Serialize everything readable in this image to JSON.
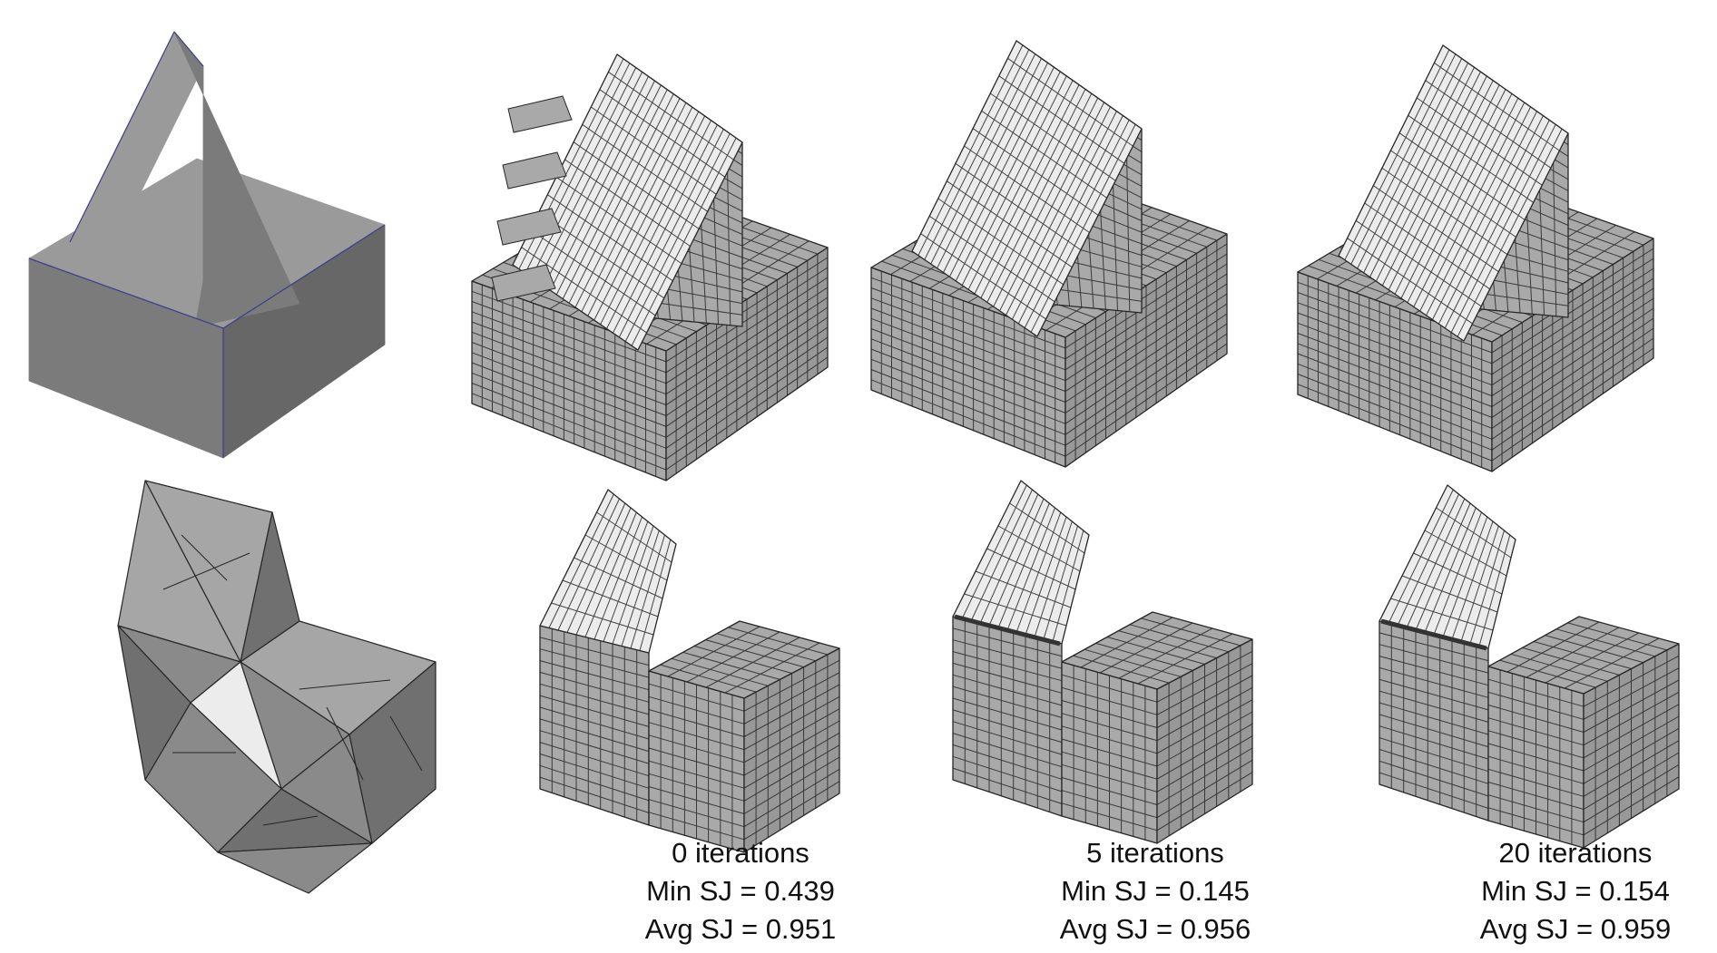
{
  "colors": {
    "background": "#ffffff",
    "cad_face_top": "#9a9a9a",
    "cad_face_front": "#7b7b7b",
    "cad_face_side": "#676767",
    "cad_edge": "#3b3f8c",
    "tet_face_top": "#a6a6a6",
    "tet_face_front": "#8a8a8a",
    "tet_face_side": "#707070",
    "mesh_light_face": "#ececec",
    "mesh_dark_face": "#a9a9a9",
    "mesh_side_face": "#989898",
    "mesh_line": "#262626"
  },
  "panels": [
    {
      "name": "cad-model",
      "description_icon": "cad-solid-icon"
    },
    {
      "name": "tet-mesh",
      "description_icon": "tetrahedral-mesh-icon"
    },
    {
      "name": "hex-mesh-0-iterations-full",
      "description_icon": "hex-mesh-icon"
    },
    {
      "name": "hex-mesh-0-iterations-cut",
      "description_icon": "hex-mesh-cut-icon"
    },
    {
      "name": "hex-mesh-5-iterations-full",
      "description_icon": "hex-mesh-icon"
    },
    {
      "name": "hex-mesh-5-iterations-cut",
      "description_icon": "hex-mesh-cut-icon"
    },
    {
      "name": "hex-mesh-20-iterations-full",
      "description_icon": "hex-mesh-icon"
    },
    {
      "name": "hex-mesh-20-iterations-cut",
      "description_icon": "hex-mesh-cut-icon"
    }
  ],
  "captions": [
    {
      "iterations": "0 iterations",
      "min_sj": "Min SJ = 0.439",
      "avg_sj": "Avg SJ = 0.951"
    },
    {
      "iterations": "5 iterations",
      "min_sj": "Min SJ = 0.145",
      "avg_sj": "Avg SJ = 0.956"
    },
    {
      "iterations": "20 iterations",
      "min_sj": "Min SJ = 0.154",
      "avg_sj": "Avg SJ = 0.959"
    }
  ]
}
